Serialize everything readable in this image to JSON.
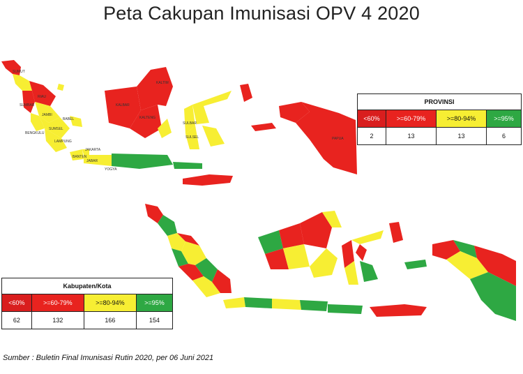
{
  "title": "Peta Cakupan Imunisasi OPV 4 2020",
  "colors": {
    "lt60": "#e31e1e",
    "r60_79": "#e8231f",
    "r80_94": "#f7ee33",
    "ge95": "#2ea843"
  },
  "provinsi_legend": {
    "header": "PROVINSI",
    "categories": [
      "<60%",
      ">=60-79%",
      ">=80-94%",
      ">=95%"
    ],
    "counts": [
      "2",
      "13",
      "13",
      "6"
    ]
  },
  "kabupaten_legend": {
    "header": "Kabupaten/Kota",
    "categories": [
      "<60%",
      ">=60-79%",
      ">=80-94%",
      ">=95%"
    ],
    "counts": [
      "62",
      "132",
      "166",
      "154"
    ]
  },
  "map_labels": {
    "riau": "RIAU",
    "sumbar": "SUMBAR",
    "jambi": "JAMBI",
    "sumsel": "SUMSEL",
    "bengkulu": "BENGKULU",
    "lampung": "LAMPUNG",
    "jakarta": "JAKARTA",
    "jabar": "JABAR",
    "yogya": "YOGYA",
    "kalbar": "KALBAR",
    "kalteng": "KALTENG",
    "kaltim": "KALTIM",
    "sulbar": "SULBAR",
    "sulsel": "SULSEL",
    "papua": "PAPUA",
    "babel": "BABEL",
    "sumut": "SUMUT",
    "banten": "BANTEN"
  },
  "source": "Sumber : Buletin Final Imunisasi Rutin 2020, per 06 Juni 2021"
}
